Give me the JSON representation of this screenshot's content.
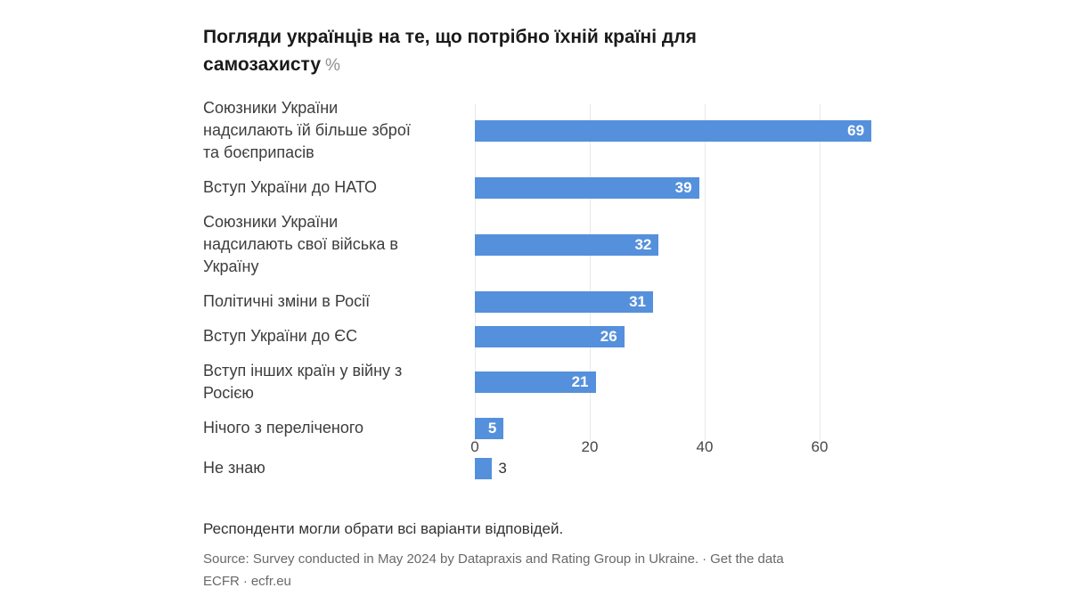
{
  "header": {
    "title": "Погляди українців на те, що потрібно їхній країні для самозахисту",
    "unit": "%"
  },
  "chart_data": {
    "type": "bar",
    "orientation": "horizontal",
    "title": "Погляди українців на те, що потрібно їхній країні для самозахисту %",
    "categories": [
      "Союзники України надсилають їй більше зброї та боєприпасів",
      "Вступ України до НАТО",
      "Союзники України надсилають свої війська в Україну",
      "Політичні зміни в Росії",
      "Вступ України до ЄС",
      "Вступ інших країн у війну з Росією",
      "Нічого з переліченого",
      "Не знаю"
    ],
    "categories_display": [
      "Союзники України\nнадсилають їй більше зброї\nта боєприпасів",
      "Вступ України до НАТО",
      "Союзники України\nнадсилають свої війська в\nУкраїну",
      "Політичні зміни в Росії",
      "Вступ України до ЄС",
      "Вступ інших країн у війну з\nРосією",
      "Нічого з переліченого",
      "Не знаю"
    ],
    "values": [
      69,
      39,
      32,
      31,
      26,
      21,
      5,
      3
    ],
    "x_ticks": [
      0,
      20,
      40,
      60
    ],
    "xlim": [
      0,
      70
    ],
    "grid": true,
    "legend": false,
    "bar_color": "#5590dc",
    "value_labels": "inside-end, outside when bar too short"
  },
  "footer": {
    "notes": "Респонденти могли обрати всі варіанти відповідей.",
    "source_text": "Source: Survey conducted in May 2024 by Datapraxis and Rating Group in Ukraine.",
    "separator": "·",
    "get_data_label": "Get the data",
    "byline_org": "ECFR",
    "byline_site": "ecfr.eu"
  },
  "colors": {
    "bar": "#5590dc",
    "bar_value_label": "#ffffff",
    "outside_value_label": "#333333",
    "gridline": "#e9e9e9",
    "title": "#1a1a1a",
    "title_unit": "#8f8f8f",
    "category_label": "#3d3d3d",
    "axis_label": "#464646",
    "notes": "#333333",
    "source": "#696969",
    "background": "#ffffff"
  }
}
